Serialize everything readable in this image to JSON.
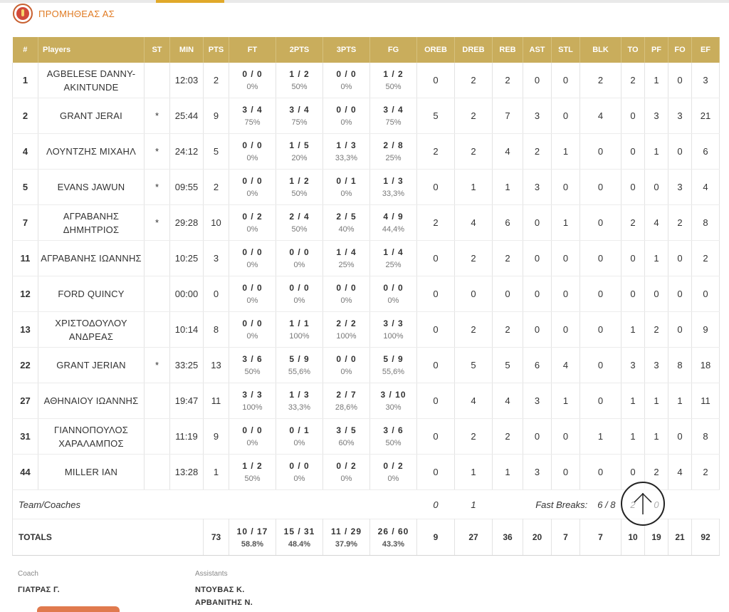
{
  "header": {
    "team_name": "ΠΡΟΜΗΘΕΑΣ ΑΣ",
    "top_cut_text": "...",
    "accent": "#c9ad5c",
    "brand": "#e07a22"
  },
  "columns": [
    "#",
    "Players",
    "ST",
    "MIN",
    "PTS",
    "FT",
    "2PTS",
    "3PTS",
    "FG",
    "OREB",
    "DREB",
    "REB",
    "AST",
    "STL",
    "BLK",
    "TO",
    "PF",
    "FO",
    "EF"
  ],
  "players": [
    {
      "num": "1",
      "name": "AGBELESE DANNY-AKINTUNDE",
      "st": "",
      "min": "12:03",
      "pts": "2",
      "ft": "0 / 0",
      "ft_pct": "0%",
      "p2": "1 / 2",
      "p2_pct": "50%",
      "p3": "0 / 0",
      "p3_pct": "0%",
      "fg": "1 / 2",
      "fg_pct": "50%",
      "oreb": "0",
      "dreb": "2",
      "reb": "2",
      "ast": "0",
      "stl": "0",
      "blk": "2",
      "to": "2",
      "pf": "1",
      "fo": "0",
      "ef": "3"
    },
    {
      "num": "2",
      "name": "GRANT JERAI",
      "st": "*",
      "min": "25:44",
      "pts": "9",
      "ft": "3 / 4",
      "ft_pct": "75%",
      "p2": "3 / 4",
      "p2_pct": "75%",
      "p3": "0 / 0",
      "p3_pct": "0%",
      "fg": "3 / 4",
      "fg_pct": "75%",
      "oreb": "5",
      "dreb": "2",
      "reb": "7",
      "ast": "3",
      "stl": "0",
      "blk": "4",
      "to": "0",
      "pf": "3",
      "fo": "3",
      "ef": "21"
    },
    {
      "num": "4",
      "name": "ΛΟΥΝΤΖΗΣ ΜΙΧΑΗΛ",
      "st": "*",
      "min": "24:12",
      "pts": "5",
      "ft": "0 / 0",
      "ft_pct": "0%",
      "p2": "1 / 5",
      "p2_pct": "20%",
      "p3": "1 / 3",
      "p3_pct": "33,3%",
      "fg": "2 / 8",
      "fg_pct": "25%",
      "oreb": "2",
      "dreb": "2",
      "reb": "4",
      "ast": "2",
      "stl": "1",
      "blk": "0",
      "to": "0",
      "pf": "1",
      "fo": "0",
      "ef": "6"
    },
    {
      "num": "5",
      "name": "EVANS JAWUN",
      "st": "*",
      "min": "09:55",
      "pts": "2",
      "ft": "0 / 0",
      "ft_pct": "0%",
      "p2": "1 / 2",
      "p2_pct": "50%",
      "p3": "0 / 1",
      "p3_pct": "0%",
      "fg": "1 / 3",
      "fg_pct": "33,3%",
      "oreb": "0",
      "dreb": "1",
      "reb": "1",
      "ast": "3",
      "stl": "0",
      "blk": "0",
      "to": "0",
      "pf": "0",
      "fo": "3",
      "ef": "4"
    },
    {
      "num": "7",
      "name": "ΑΓΡΑΒΑΝΗΣ ΔΗΜΗΤΡΙΟΣ",
      "st": "*",
      "min": "29:28",
      "pts": "10",
      "ft": "0 / 2",
      "ft_pct": "0%",
      "p2": "2 / 4",
      "p2_pct": "50%",
      "p3": "2 / 5",
      "p3_pct": "40%",
      "fg": "4 / 9",
      "fg_pct": "44,4%",
      "oreb": "2",
      "dreb": "4",
      "reb": "6",
      "ast": "0",
      "stl": "1",
      "blk": "0",
      "to": "2",
      "pf": "4",
      "fo": "2",
      "ef": "8"
    },
    {
      "num": "11",
      "name": "ΑΓΡΑΒΑΝΗΣ ΙΩΑΝΝΗΣ",
      "st": "",
      "min": "10:25",
      "pts": "3",
      "ft": "0 / 0",
      "ft_pct": "0%",
      "p2": "0 / 0",
      "p2_pct": "0%",
      "p3": "1 / 4",
      "p3_pct": "25%",
      "fg": "1 / 4",
      "fg_pct": "25%",
      "oreb": "0",
      "dreb": "2",
      "reb": "2",
      "ast": "0",
      "stl": "0",
      "blk": "0",
      "to": "0",
      "pf": "1",
      "fo": "0",
      "ef": "2"
    },
    {
      "num": "12",
      "name": "FORD QUINCY",
      "st": "",
      "min": "00:00",
      "pts": "0",
      "ft": "0 / 0",
      "ft_pct": "0%",
      "p2": "0 / 0",
      "p2_pct": "0%",
      "p3": "0 / 0",
      "p3_pct": "0%",
      "fg": "0 / 0",
      "fg_pct": "0%",
      "oreb": "0",
      "dreb": "0",
      "reb": "0",
      "ast": "0",
      "stl": "0",
      "blk": "0",
      "to": "0",
      "pf": "0",
      "fo": "0",
      "ef": "0"
    },
    {
      "num": "13",
      "name": "ΧΡΙΣΤΟΔΟΥΛΟΥ ΑΝΔΡΕΑΣ",
      "st": "",
      "min": "10:14",
      "pts": "8",
      "ft": "0 / 0",
      "ft_pct": "0%",
      "p2": "1 / 1",
      "p2_pct": "100%",
      "p3": "2 / 2",
      "p3_pct": "100%",
      "fg": "3 / 3",
      "fg_pct": "100%",
      "oreb": "0",
      "dreb": "2",
      "reb": "2",
      "ast": "0",
      "stl": "0",
      "blk": "0",
      "to": "1",
      "pf": "2",
      "fo": "0",
      "ef": "9"
    },
    {
      "num": "22",
      "name": "GRANT JERIAN",
      "st": "*",
      "min": "33:25",
      "pts": "13",
      "ft": "3 / 6",
      "ft_pct": "50%",
      "p2": "5 / 9",
      "p2_pct": "55,6%",
      "p3": "0 / 0",
      "p3_pct": "0%",
      "fg": "5 / 9",
      "fg_pct": "55,6%",
      "oreb": "0",
      "dreb": "5",
      "reb": "5",
      "ast": "6",
      "stl": "4",
      "blk": "0",
      "to": "3",
      "pf": "3",
      "fo": "8",
      "ef": "18"
    },
    {
      "num": "27",
      "name": "ΑΘΗΝΑΙΟΥ ΙΩΑΝΝΗΣ",
      "st": "",
      "min": "19:47",
      "pts": "11",
      "ft": "3 / 3",
      "ft_pct": "100%",
      "p2": "1 / 3",
      "p2_pct": "33,3%",
      "p3": "2 / 7",
      "p3_pct": "28,6%",
      "fg": "3 / 10",
      "fg_pct": "30%",
      "oreb": "0",
      "dreb": "4",
      "reb": "4",
      "ast": "3",
      "stl": "1",
      "blk": "0",
      "to": "1",
      "pf": "1",
      "fo": "1",
      "ef": "11"
    },
    {
      "num": "31",
      "name": "ΓΙΑΝΝΟΠΟΥΛΟΣ ΧΑΡΑΛΑΜΠΟΣ",
      "st": "",
      "min": "11:19",
      "pts": "9",
      "ft": "0 / 0",
      "ft_pct": "0%",
      "p2": "0 / 1",
      "p2_pct": "0%",
      "p3": "3 / 5",
      "p3_pct": "60%",
      "fg": "3 / 6",
      "fg_pct": "50%",
      "oreb": "0",
      "dreb": "2",
      "reb": "2",
      "ast": "0",
      "stl": "0",
      "blk": "1",
      "to": "1",
      "pf": "1",
      "fo": "0",
      "ef": "8"
    },
    {
      "num": "44",
      "name": "MILLER IAN",
      "st": "",
      "min": "13:28",
      "pts": "1",
      "ft": "1 / 2",
      "ft_pct": "50%",
      "p2": "0 / 0",
      "p2_pct": "0%",
      "p3": "0 / 2",
      "p3_pct": "0%",
      "fg": "0 / 2",
      "fg_pct": "0%",
      "oreb": "0",
      "dreb": "1",
      "reb": "1",
      "ast": "3",
      "stl": "0",
      "blk": "0",
      "to": "0",
      "pf": "2",
      "fo": "4",
      "ef": "2"
    }
  ],
  "team_coaches": {
    "label": "Team/Coaches",
    "oreb": "0",
    "dreb": "1",
    "fast_breaks_label": "Fast Breaks:",
    "fast_breaks": "6 / 8",
    "to": "2",
    "pf": "0"
  },
  "totals": {
    "label": "TOTALS",
    "pts": "73",
    "ft": "10 / 17",
    "ft_pct": "58.8%",
    "p2": "15 / 31",
    "p2_pct": "48.4%",
    "p3": "11 / 29",
    "p3_pct": "37.9%",
    "fg": "26 / 60",
    "fg_pct": "43.3%",
    "oreb": "9",
    "dreb": "27",
    "reb": "36",
    "ast": "20",
    "stl": "7",
    "blk": "7",
    "to": "10",
    "pf": "19",
    "fo": "21",
    "ef": "92"
  },
  "staff": {
    "coach_label": "Coach",
    "coach": "ΓΙΑΤΡΑΣ Γ.",
    "assistants_label": "Assistants",
    "assistants": [
      "ΝΤΟΥΒΑΣ Κ.",
      "ΑΡΒΑΝΙΤΗΣ Ν."
    ]
  },
  "icons": {
    "scroll_top": "arrow-up-icon",
    "team_logo": "team-logo"
  }
}
